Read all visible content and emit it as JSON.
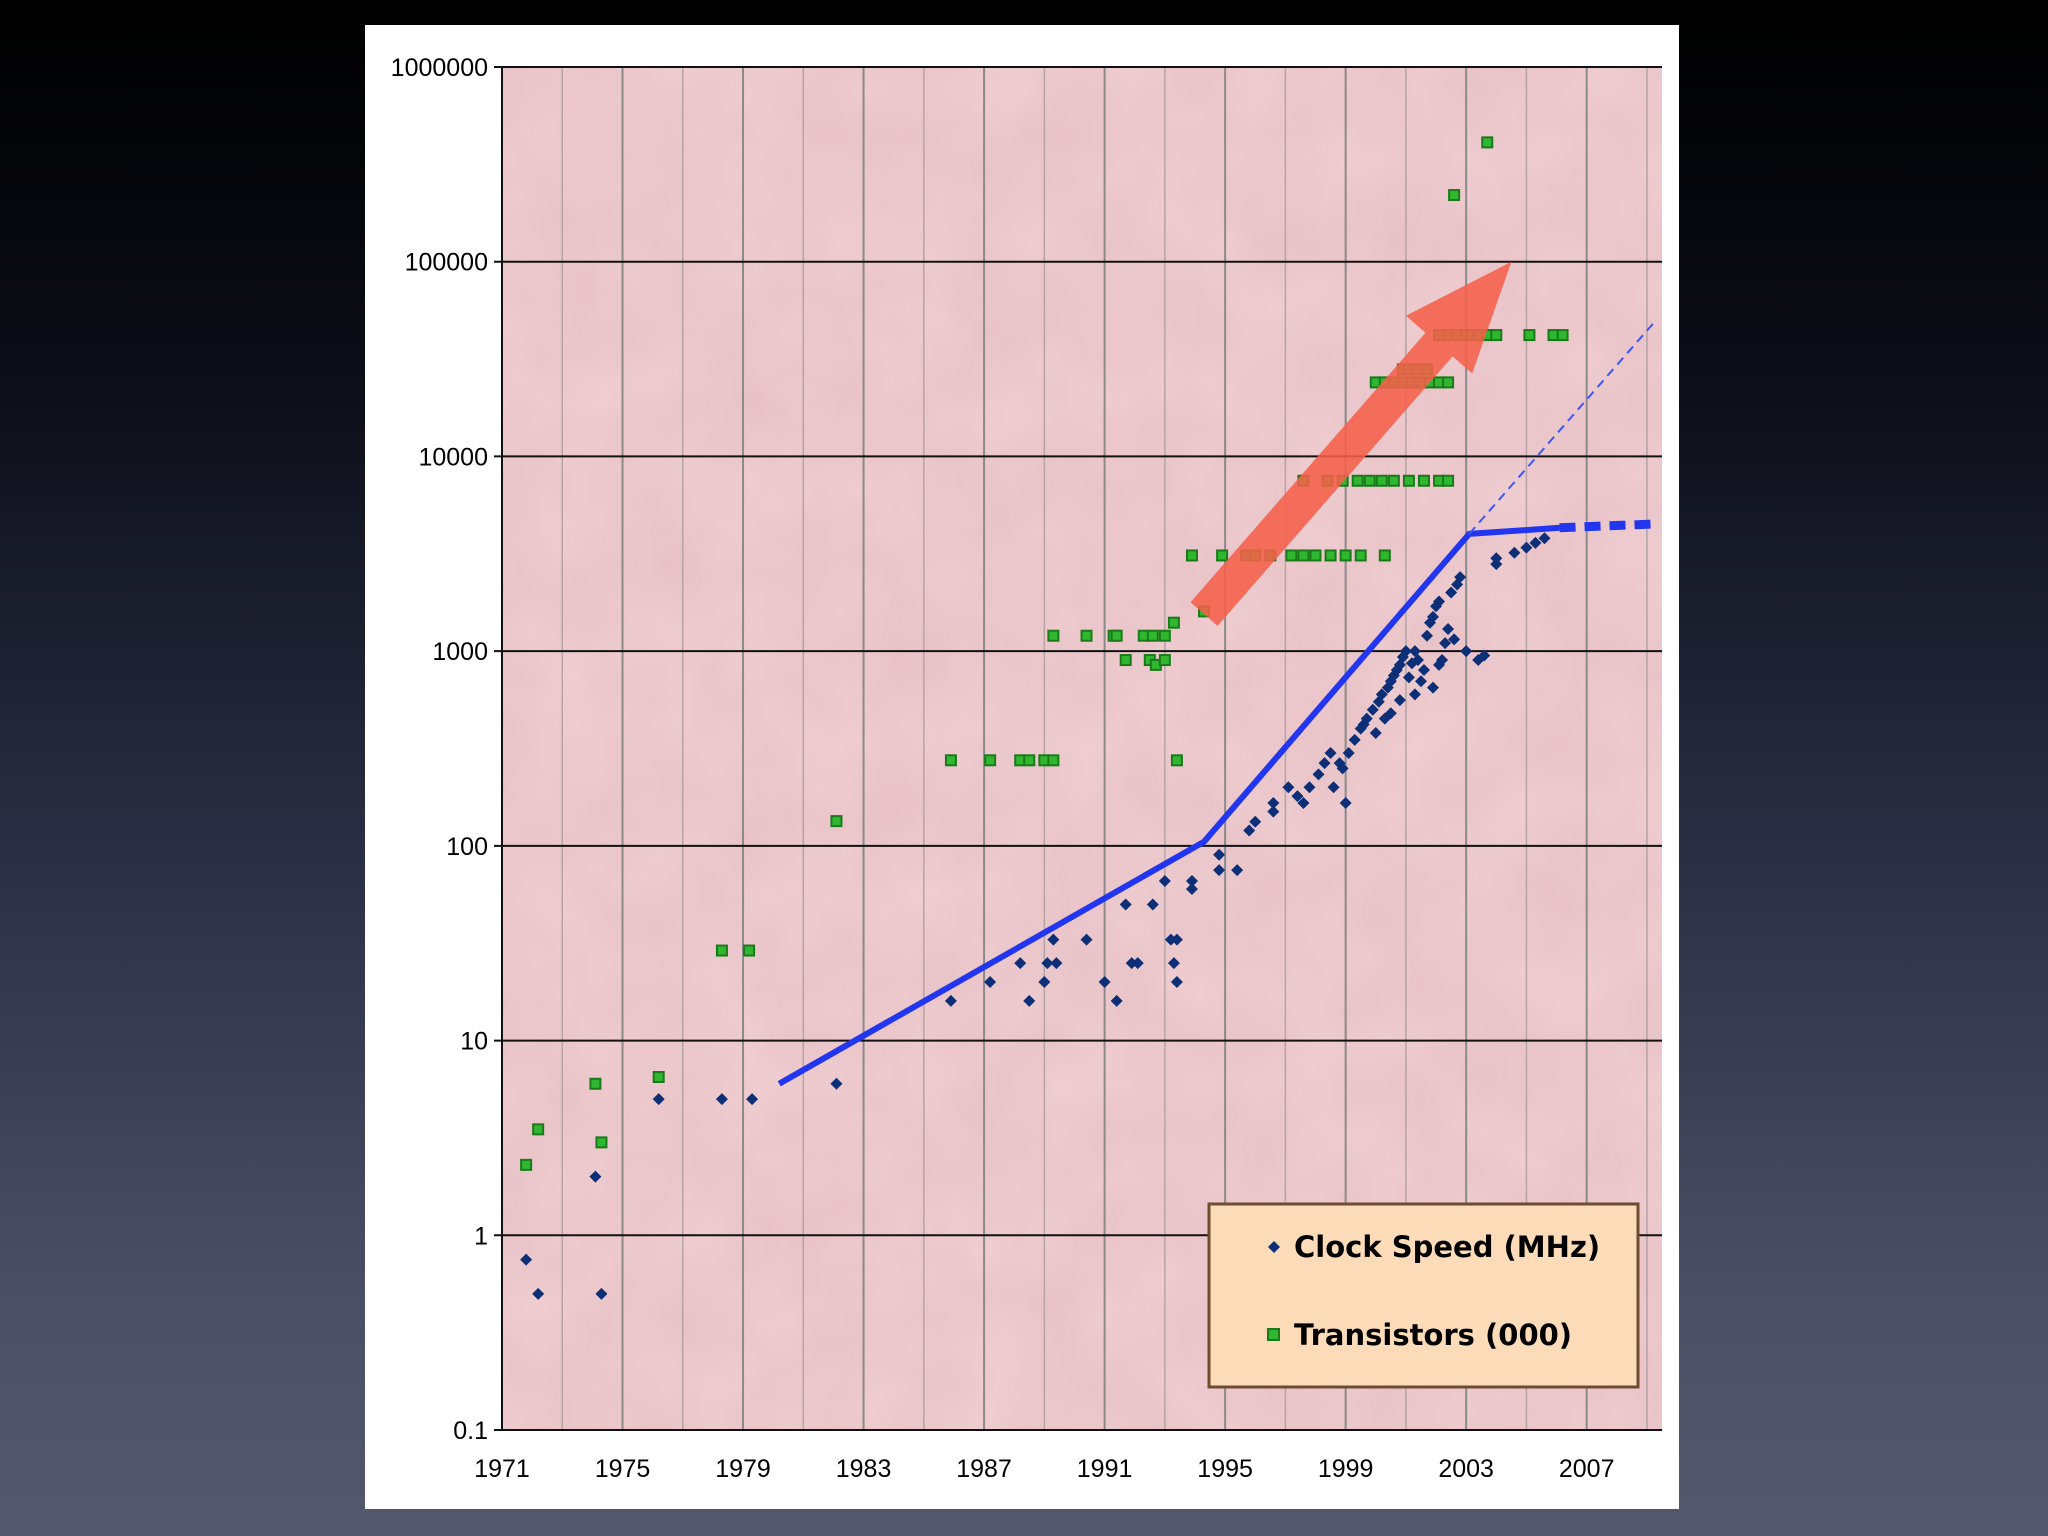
{
  "chart_data": {
    "type": "scatter",
    "yscale": "log",
    "ylim": [
      0.1,
      1000000
    ],
    "xlim": [
      1971,
      2009.5
    ],
    "y_ticks": [
      "0.1",
      "1",
      "10",
      "100",
      "1000",
      "10000",
      "100000",
      "1000000"
    ],
    "x_ticks": [
      "1971",
      "1975",
      "1979",
      "1983",
      "1987",
      "1991",
      "1995",
      "1999",
      "2003",
      "2007"
    ],
    "grid": true,
    "legend_position": "bottom-right",
    "colors": {
      "plot_background": "#f0cfd2",
      "clock": "#0d2f78",
      "transistor_fill": "#2fb82f",
      "transistor_edge": "#1a7a1a",
      "trend_line": "#2236f0",
      "arrow": "#f5604a",
      "legend_bg": "#fcdcb8",
      "legend_border": "#6e4c2e"
    },
    "series": [
      {
        "name": "Clock Speed (MHz)",
        "marker": "diamond",
        "points": [
          [
            1971.8,
            0.75
          ],
          [
            1972.2,
            0.5
          ],
          [
            1974.1,
            2
          ],
          [
            1974.3,
            0.5
          ],
          [
            1976.2,
            5
          ],
          [
            1978.3,
            5
          ],
          [
            1979.3,
            5
          ],
          [
            1982.1,
            6
          ],
          [
            1985.9,
            16
          ],
          [
            1987.2,
            20
          ],
          [
            1988.2,
            25
          ],
          [
            1988.5,
            16
          ],
          [
            1989.0,
            20
          ],
          [
            1989.1,
            25
          ],
          [
            1989.3,
            33
          ],
          [
            1989.4,
            25
          ],
          [
            1990.4,
            33
          ],
          [
            1991.0,
            20
          ],
          [
            1991.4,
            16
          ],
          [
            1991.7,
            50
          ],
          [
            1991.9,
            25
          ],
          [
            1992.1,
            25
          ],
          [
            1992.6,
            50
          ],
          [
            1993.0,
            66
          ],
          [
            1993.2,
            33
          ],
          [
            1993.4,
            33
          ],
          [
            1993.3,
            25
          ],
          [
            1993.4,
            20
          ],
          [
            1993.9,
            60
          ],
          [
            1993.9,
            66
          ],
          [
            1994.8,
            75
          ],
          [
            1994.8,
            90
          ],
          [
            1995.4,
            75
          ],
          [
            1995.8,
            120
          ],
          [
            1996.0,
            133
          ],
          [
            1996.6,
            150
          ],
          [
            1996.6,
            166
          ],
          [
            1997.1,
            200
          ],
          [
            1997.6,
            166
          ],
          [
            1997.8,
            200
          ],
          [
            1998.1,
            233
          ],
          [
            1998.3,
            266
          ],
          [
            1998.5,
            300
          ],
          [
            1998.8,
            266
          ],
          [
            1999.0,
            166
          ],
          [
            1999.1,
            300
          ],
          [
            1999.3,
            350
          ],
          [
            1999.5,
            400
          ],
          [
            1999.7,
            450
          ],
          [
            1999.9,
            500
          ],
          [
            2000.1,
            550
          ],
          [
            2000.2,
            600
          ],
          [
            2000.3,
            450
          ],
          [
            2000.4,
            650
          ],
          [
            2000.5,
            700
          ],
          [
            2000.6,
            750
          ],
          [
            2000.7,
            800
          ],
          [
            2000.8,
            850
          ],
          [
            2000.9,
            933
          ],
          [
            2001.0,
            1000
          ],
          [
            2001.1,
            733
          ],
          [
            2001.2,
            866
          ],
          [
            2001.3,
            1000
          ],
          [
            2001.5,
            700
          ],
          [
            2001.6,
            800
          ],
          [
            2001.7,
            1200
          ],
          [
            2001.8,
            1400
          ],
          [
            2001.9,
            1500
          ],
          [
            2002.0,
            1700
          ],
          [
            2002.1,
            1800
          ],
          [
            2002.2,
            900
          ],
          [
            2002.3,
            1100
          ],
          [
            2002.4,
            1300
          ],
          [
            2002.5,
            2000
          ],
          [
            2002.7,
            2200
          ],
          [
            2002.8,
            2400
          ],
          [
            2003.0,
            1000
          ],
          [
            2003.4,
            900
          ],
          [
            2004.0,
            2800
          ],
          [
            2004.0,
            3000
          ],
          [
            2004.6,
            3200
          ],
          [
            2005.0,
            3400
          ],
          [
            2005.3,
            3600
          ],
          [
            2005.6,
            3800
          ],
          [
            2001.3,
            600
          ],
          [
            2000.8,
            560
          ],
          [
            1999.6,
            420
          ],
          [
            2000.0,
            380
          ],
          [
            1998.9,
            250
          ],
          [
            1998.6,
            200
          ],
          [
            1997.4,
            180
          ],
          [
            2003.6,
            950
          ],
          [
            2001.9,
            650
          ],
          [
            2002.1,
            850
          ],
          [
            2000.5,
            480
          ],
          [
            2001.4,
            900
          ],
          [
            2002.6,
            1150
          ]
        ]
      },
      {
        "name": "Transistors (000)",
        "marker": "square",
        "points": [
          [
            1971.8,
            2.3
          ],
          [
            1972.2,
            3.5
          ],
          [
            1974.1,
            6
          ],
          [
            1974.3,
            3
          ],
          [
            1976.2,
            6.5
          ],
          [
            1978.3,
            29
          ],
          [
            1979.2,
            29
          ],
          [
            1982.1,
            134
          ],
          [
            1985.9,
            275
          ],
          [
            1987.2,
            275
          ],
          [
            1988.2,
            275
          ],
          [
            1988.5,
            275
          ],
          [
            1989.0,
            275
          ],
          [
            1989.3,
            275
          ],
          [
            1993.4,
            275
          ],
          [
            1989.3,
            1200
          ],
          [
            1990.4,
            1200
          ],
          [
            1991.3,
            1200
          ],
          [
            1991.4,
            1200
          ],
          [
            1992.3,
            1200
          ],
          [
            1992.6,
            1200
          ],
          [
            1993.0,
            1200
          ],
          [
            1993.3,
            1400
          ],
          [
            1991.7,
            900
          ],
          [
            1992.5,
            900
          ],
          [
            1992.7,
            850
          ],
          [
            1993.0,
            900
          ],
          [
            1994.3,
            1600
          ],
          [
            1993.9,
            3100
          ],
          [
            1994.9,
            3100
          ],
          [
            1995.7,
            3100
          ],
          [
            1996.0,
            3100
          ],
          [
            1996.5,
            3100
          ],
          [
            1997.2,
            3100
          ],
          [
            1997.6,
            3100
          ],
          [
            1998.0,
            3100
          ],
          [
            1998.5,
            3100
          ],
          [
            1999.0,
            3100
          ],
          [
            1999.5,
            3100
          ],
          [
            2000.3,
            3100
          ],
          [
            1997.6,
            7500
          ],
          [
            1998.4,
            7500
          ],
          [
            1998.9,
            7500
          ],
          [
            1999.4,
            7500
          ],
          [
            1999.8,
            7500
          ],
          [
            2000.2,
            7500
          ],
          [
            2000.6,
            7500
          ],
          [
            2001.1,
            7500
          ],
          [
            2001.6,
            7500
          ],
          [
            2002.1,
            7500
          ],
          [
            2002.4,
            7500
          ],
          [
            2000.0,
            24000
          ],
          [
            2000.3,
            24000
          ],
          [
            2000.6,
            24000
          ],
          [
            2000.9,
            24000
          ],
          [
            2001.2,
            24000
          ],
          [
            2001.5,
            24000
          ],
          [
            2001.8,
            24000
          ],
          [
            2002.1,
            24000
          ],
          [
            2002.4,
            24000
          ],
          [
            2000.9,
            28000
          ],
          [
            2001.1,
            28000
          ],
          [
            2001.4,
            28000
          ],
          [
            2001.7,
            28000
          ],
          [
            2002.1,
            42000
          ],
          [
            2002.4,
            42000
          ],
          [
            2002.7,
            42000
          ],
          [
            2003.0,
            42000
          ],
          [
            2003.2,
            42000
          ],
          [
            2003.4,
            42000
          ],
          [
            2003.7,
            42000
          ],
          [
            2004.0,
            42000
          ],
          [
            2005.1,
            42000
          ],
          [
            2005.9,
            42000
          ],
          [
            2006.2,
            42000
          ],
          [
            2002.6,
            220000
          ],
          [
            2003.7,
            410000
          ]
        ]
      }
    ]
  },
  "legend": {
    "clock_label": "Clock Speed (MHz)",
    "transistor_label": "Transistors (000)"
  }
}
